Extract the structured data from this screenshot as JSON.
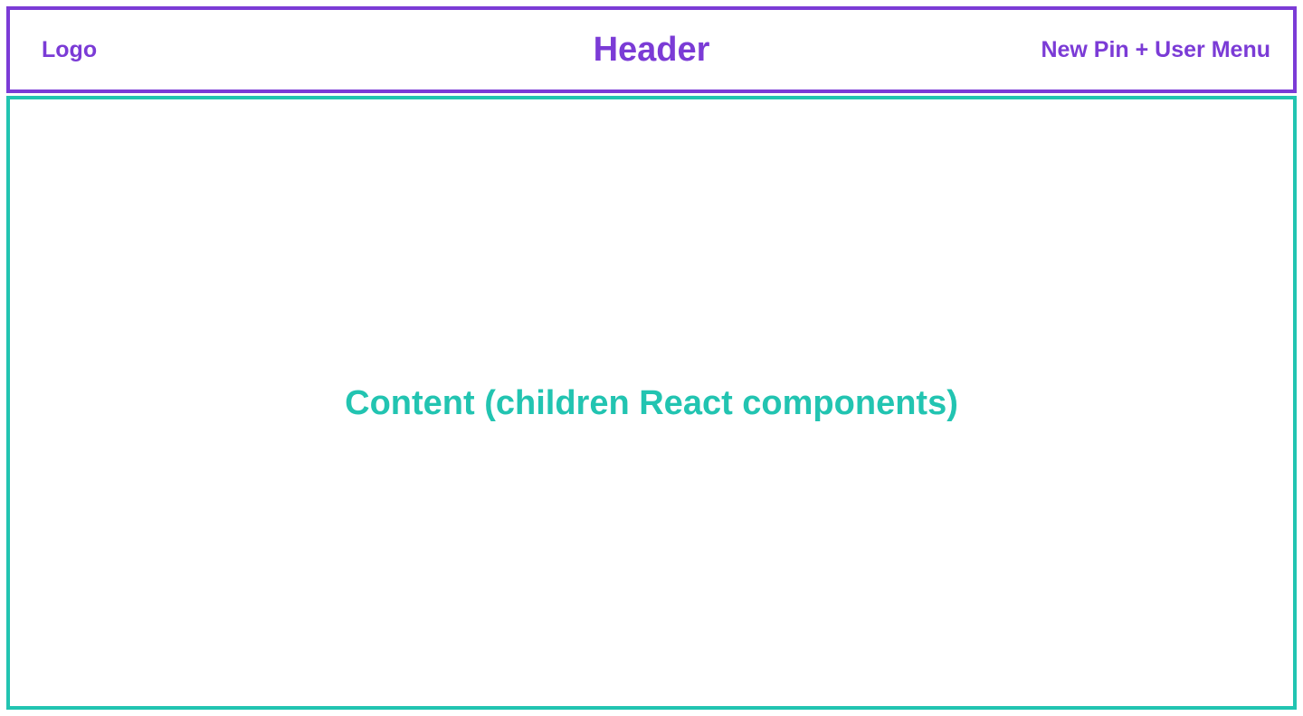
{
  "header": {
    "left_label": "Logo",
    "title": "Header",
    "right_label": "New Pin + User Menu",
    "color": "#7b3bd6"
  },
  "content": {
    "label": "Content (children React components)",
    "color": "#22c4b1"
  }
}
